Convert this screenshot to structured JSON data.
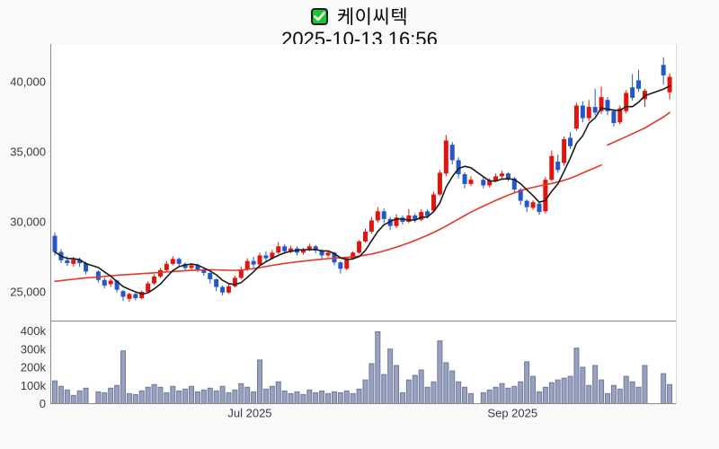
{
  "page": {
    "background": "#f9f9f9"
  },
  "header": {
    "checkbox": {
      "checked": true,
      "color": "#1ec62d"
    },
    "title": "케이씨텍",
    "datetime": "2025-10-13 16:56"
  },
  "colors": {
    "up": "#e1140e",
    "down": "#2457c9",
    "ma_short": "#1b1b1b",
    "ma_long": "#e5372b",
    "volume_fill": "#98a1c0",
    "volume_stroke": "#6e7999",
    "axis": "#8a8a8a",
    "panel_border": "#d9d9d9",
    "label": "#3a3a42",
    "plot_bg": "#ffffff"
  },
  "chart_data": {
    "type": "candlestick",
    "title": "케이씨텍",
    "timestamp": "2025-10-13 16:56",
    "legend_position": "none",
    "grid": false,
    "price_axis": {
      "ticks": [
        {
          "value": 25000,
          "label": "25,000"
        },
        {
          "value": 30000,
          "label": "30,000"
        },
        {
          "value": 35000,
          "label": "35,000"
        },
        {
          "value": 40000,
          "label": "40,000"
        }
      ],
      "range": [
        23300,
        42100
      ]
    },
    "volume_axis": {
      "unit": "k",
      "ticks": [
        {
          "value": 0,
          "label": "0"
        },
        {
          "value": 100,
          "label": "100k"
        },
        {
          "value": 200,
          "label": "200k"
        },
        {
          "value": 300,
          "label": "300k"
        },
        {
          "value": 400,
          "label": "400k"
        }
      ],
      "range": [
        0,
        460
      ]
    },
    "x_axis": {
      "ticks": [
        {
          "index": 31.4,
          "label": "Jul 2025"
        },
        {
          "index": 73.7,
          "label": "Sep 2025"
        }
      ]
    },
    "candles_ohlc": [
      [
        29000,
        29250,
        27600,
        27850
      ],
      [
        27850,
        28050,
        27050,
        27250
      ],
      [
        27250,
        27550,
        26850,
        27050
      ],
      [
        27000,
        27500,
        26800,
        27300
      ],
      [
        27300,
        27450,
        26800,
        27050
      ],
      [
        27050,
        27150,
        26250,
        26450
      ],
      null,
      [
        26450,
        26550,
        25650,
        25850
      ],
      [
        25850,
        26000,
        25250,
        25450
      ],
      [
        25550,
        25950,
        25350,
        25800
      ],
      [
        25800,
        25850,
        24950,
        25150
      ],
      [
        25050,
        25150,
        24350,
        24650
      ],
      [
        24500,
        24950,
        24300,
        24850
      ],
      [
        24850,
        25000,
        24400,
        24550
      ],
      [
        24550,
        25100,
        24450,
        25000
      ],
      [
        25000,
        25750,
        24900,
        25600
      ],
      [
        25600,
        26250,
        25500,
        26100
      ],
      [
        26100,
        26700,
        26000,
        26550
      ],
      [
        26550,
        27200,
        26450,
        27000
      ],
      [
        27000,
        27550,
        26900,
        27350
      ],
      [
        27350,
        27450,
        26800,
        27000
      ],
      [
        27000,
        27100,
        26500,
        26700
      ],
      [
        26700,
        27050,
        26550,
        26900
      ],
      [
        26900,
        27000,
        26400,
        26600
      ],
      [
        26600,
        26750,
        26150,
        26350
      ],
      [
        26350,
        26400,
        25600,
        25900
      ],
      [
        25900,
        25950,
        25050,
        25350
      ],
      [
        25350,
        25450,
        24750,
        24950
      ],
      [
        24950,
        25550,
        24850,
        25400
      ],
      [
        25400,
        26150,
        25300,
        26000
      ],
      [
        26000,
        26800,
        25900,
        26600
      ],
      [
        26600,
        27400,
        26500,
        27200
      ],
      [
        27200,
        27500,
        26750,
        26950
      ],
      [
        26950,
        27800,
        26850,
        27600
      ],
      [
        27600,
        27900,
        27200,
        27400
      ],
      [
        27400,
        28000,
        27300,
        27800
      ],
      [
        27800,
        28550,
        27700,
        28250
      ],
      [
        28250,
        28400,
        27700,
        27900
      ],
      [
        27900,
        28300,
        27750,
        28100
      ],
      [
        28100,
        28250,
        27600,
        27800
      ],
      [
        27800,
        28150,
        27650,
        28000
      ],
      [
        28000,
        28450,
        27900,
        28250
      ],
      [
        28250,
        28350,
        27750,
        27950
      ],
      [
        27950,
        28050,
        27350,
        27600
      ],
      [
        27600,
        27950,
        27450,
        27800
      ],
      [
        27800,
        27850,
        26900,
        27100
      ],
      [
        27100,
        27200,
        26300,
        26650
      ],
      [
        26650,
        27500,
        26550,
        27400
      ],
      [
        27400,
        27900,
        27300,
        27800
      ],
      [
        27800,
        28700,
        27700,
        28600
      ],
      [
        28600,
        29500,
        28500,
        29300
      ],
      [
        29300,
        30350,
        29150,
        30100
      ],
      [
        30100,
        31050,
        29950,
        30750
      ],
      [
        30750,
        30950,
        29900,
        30200
      ],
      [
        30200,
        30350,
        29400,
        29700
      ],
      [
        29700,
        30550,
        29550,
        30300
      ],
      [
        30300,
        30450,
        29800,
        30000
      ],
      [
        30000,
        30900,
        29900,
        30450
      ],
      [
        30450,
        30600,
        29950,
        30150
      ],
      [
        30150,
        30900,
        30050,
        30700
      ],
      [
        30750,
        30900,
        30250,
        30400
      ],
      [
        30800,
        32150,
        30700,
        31950
      ],
      [
        31950,
        33700,
        31850,
        33500
      ],
      [
        33450,
        36200,
        33250,
        35800
      ],
      [
        35500,
        35700,
        34100,
        34400
      ],
      [
        34400,
        34600,
        33100,
        33400
      ],
      [
        33400,
        33550,
        32400,
        32700
      ],
      [
        32700,
        33250,
        32550,
        33000
      ],
      null,
      [
        33000,
        33150,
        32400,
        32600
      ],
      [
        32600,
        33100,
        32450,
        32950
      ],
      [
        32950,
        33450,
        32850,
        33250
      ],
      [
        33250,
        33650,
        33100,
        33450
      ],
      [
        33450,
        33550,
        32900,
        33100
      ],
      [
        33100,
        33200,
        32100,
        32300
      ],
      [
        32300,
        32400,
        31200,
        31500
      ],
      [
        31500,
        31600,
        30700,
        31050
      ],
      [
        31000,
        31550,
        30850,
        31400
      ],
      [
        31300,
        31500,
        30500,
        30700
      ],
      [
        30750,
        33200,
        30600,
        33000
      ],
      [
        33000,
        35100,
        32900,
        34700
      ],
      [
        34300,
        34800,
        33500,
        33700
      ],
      [
        34200,
        36100,
        34000,
        35900
      ],
      [
        36000,
        36400,
        35200,
        35400
      ],
      [
        36650,
        38500,
        36500,
        38300
      ],
      [
        38300,
        38600,
        37100,
        37400
      ],
      [
        37400,
        38700,
        37200,
        38200
      ],
      [
        38200,
        39500,
        37600,
        37800
      ],
      [
        37900,
        39650,
        37700,
        38900
      ],
      [
        38700,
        38900,
        37600,
        37900
      ],
      [
        37900,
        38050,
        36800,
        37050
      ],
      [
        37100,
        38300,
        36950,
        38100
      ],
      [
        37900,
        39400,
        37750,
        39200
      ],
      [
        39600,
        40550,
        38650,
        38850
      ],
      [
        40100,
        40850,
        39300,
        39500
      ],
      [
        38750,
        39500,
        38200,
        39350
      ],
      null,
      null,
      [
        41200,
        41750,
        39800,
        40450
      ],
      [
        39250,
        40600,
        38750,
        40350
      ]
    ],
    "volumes_k": [
      125,
      95,
      75,
      45,
      70,
      85,
      null,
      65,
      60,
      85,
      100,
      290,
      55,
      50,
      70,
      90,
      105,
      90,
      60,
      95,
      70,
      80,
      95,
      65,
      75,
      85,
      70,
      95,
      60,
      75,
      110,
      90,
      65,
      240,
      80,
      95,
      120,
      70,
      55,
      65,
      50,
      75,
      60,
      70,
      55,
      65,
      60,
      70,
      55,
      80,
      130,
      220,
      395,
      160,
      300,
      210,
      60,
      130,
      155,
      185,
      90,
      120,
      345,
      225,
      180,
      120,
      90,
      55,
      null,
      60,
      75,
      90,
      110,
      85,
      95,
      120,
      230,
      150,
      65,
      90,
      115,
      130,
      140,
      150,
      305,
      200,
      100,
      210,
      130,
      55,
      100,
      80,
      150,
      120,
      90,
      210,
      null,
      null,
      165,
      105
    ],
    "ma_short": {
      "window": 5
    },
    "ma_long": {
      "values": [
        25750,
        25800,
        25850,
        25900,
        25950,
        26000,
        null,
        26060,
        26100,
        26140,
        26180,
        26210,
        26240,
        26270,
        26300,
        26330,
        26360,
        26390,
        26420,
        26450,
        26480,
        26510,
        26530,
        26550,
        26570,
        26580,
        26570,
        26550,
        26540,
        26540,
        26560,
        26600,
        26660,
        26730,
        26810,
        26890,
        26960,
        27030,
        27090,
        27140,
        27190,
        27240,
        27290,
        27330,
        27370,
        27400,
        27430,
        27460,
        27500,
        27550,
        27620,
        27700,
        27800,
        27920,
        28050,
        28190,
        28340,
        28500,
        28670,
        28850,
        29040,
        29240,
        29460,
        29700,
        29950,
        30200,
        30450,
        30690,
        null,
        31120,
        31330,
        31530,
        31720,
        31900,
        32070,
        32220,
        32350,
        32460,
        32560,
        32650,
        32740,
        32840,
        32960,
        33110,
        33290,
        33490,
        33680,
        33860,
        34060,
        35480,
        35680,
        35880,
        36080,
        36280,
        36490,
        36700,
        null,
        null,
        37480,
        37800
      ],
      "segments": [
        [
          0,
          88
        ],
        [
          89,
          99
        ]
      ]
    }
  }
}
